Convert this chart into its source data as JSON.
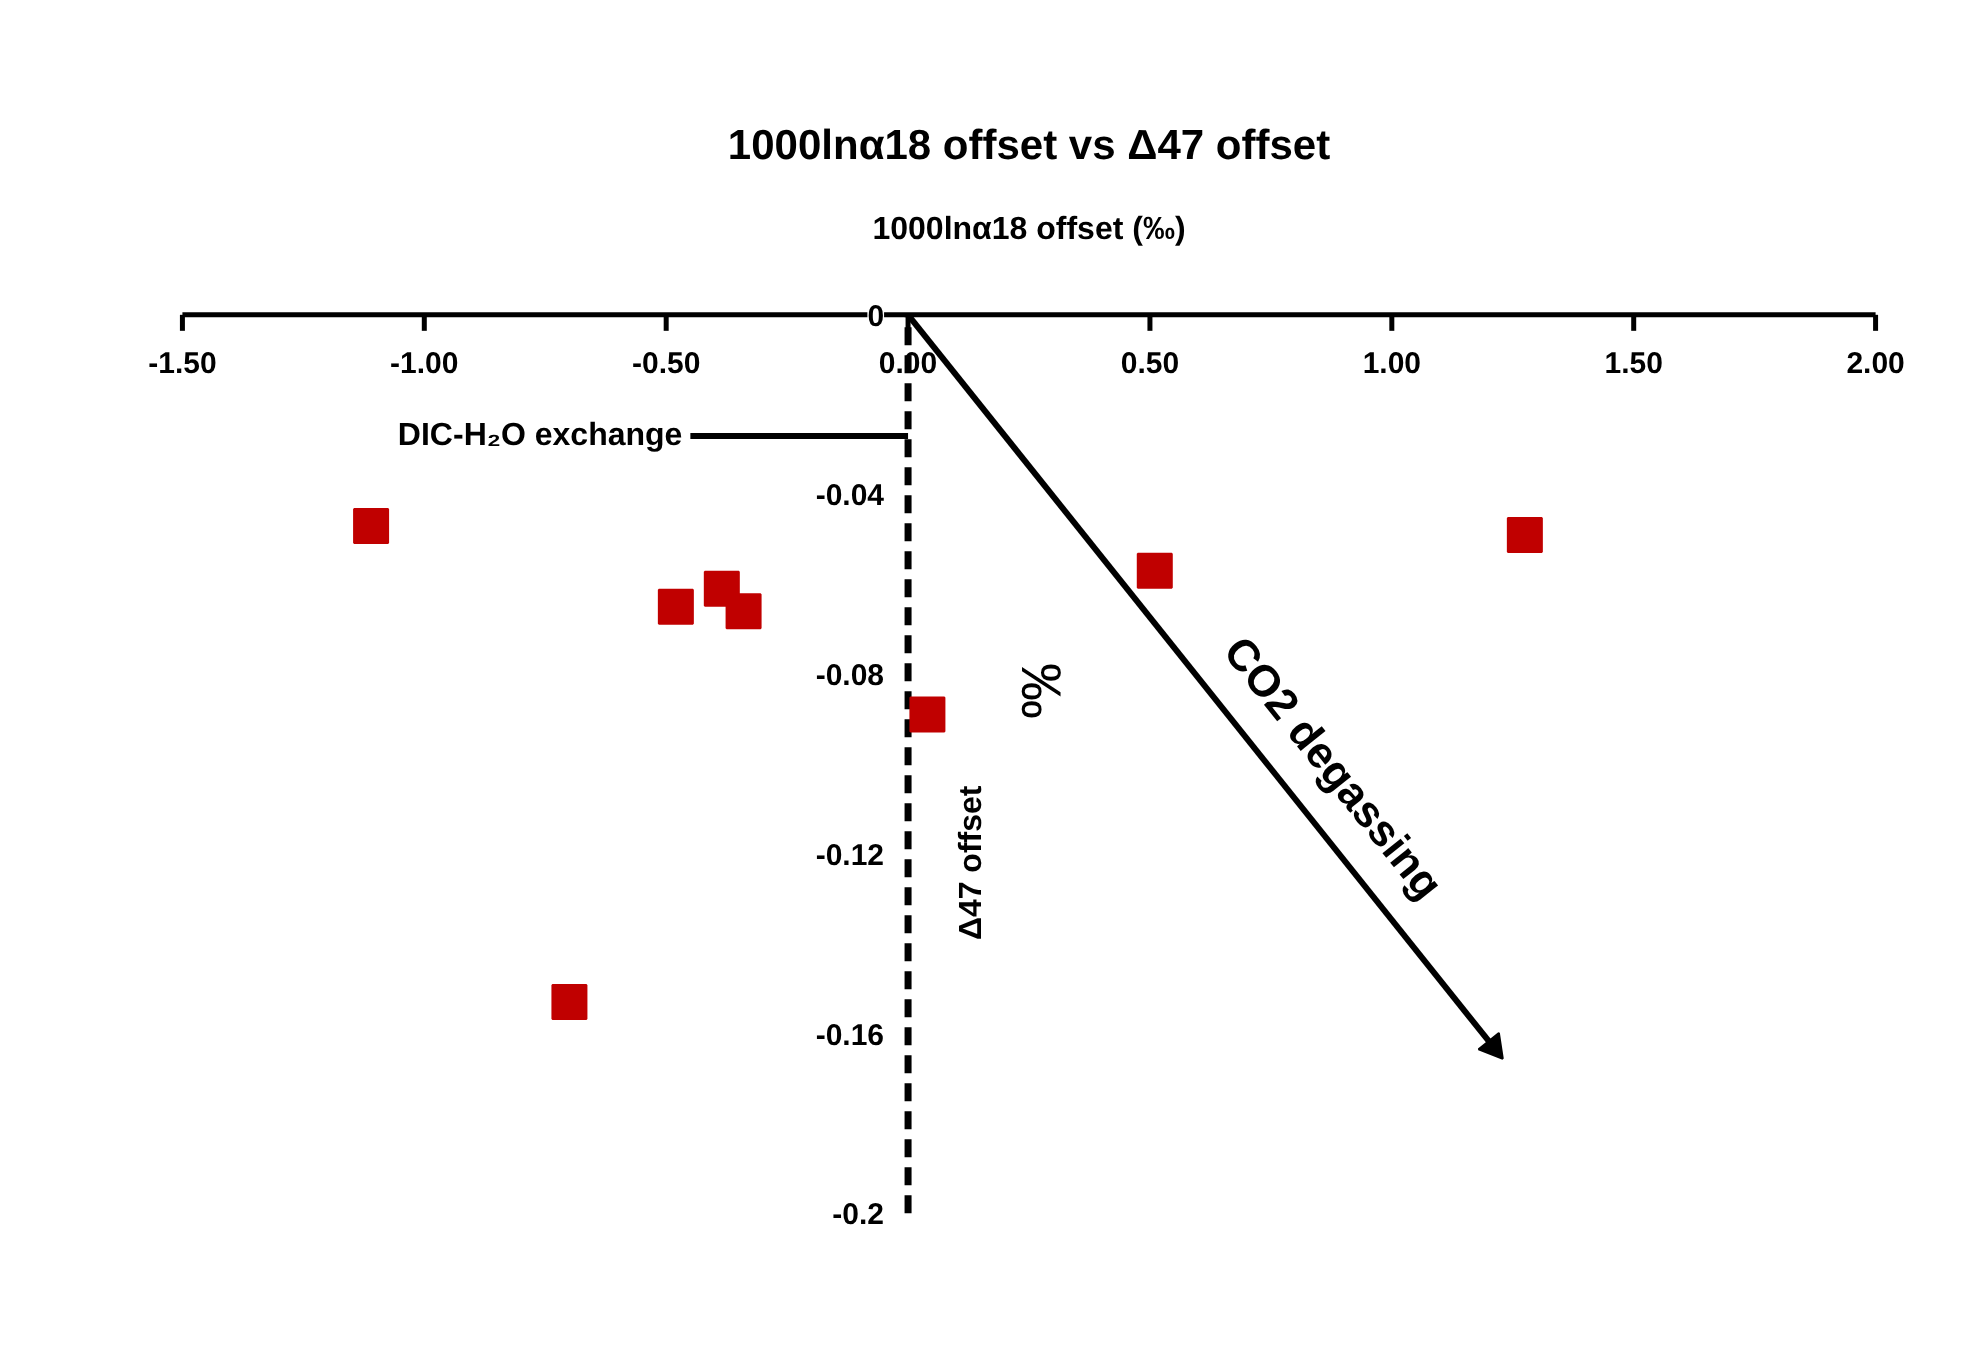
{
  "chart_data": {
    "type": "scatter",
    "title": "1000lnα18 offset vs Δ47 offset",
    "xlabel": "1000lnα18 offset (‰)",
    "ylabel": "Δ47 offset",
    "xlim": [
      -1.5,
      2.0
    ],
    "ylim": [
      -0.2,
      0
    ],
    "xticks": [
      {
        "value": -1.5,
        "label": "-1.50"
      },
      {
        "value": -1.0,
        "label": "-1.00"
      },
      {
        "value": -0.5,
        "label": "-0.50"
      },
      {
        "value": 0,
        "label": "0.00"
      },
      {
        "value": 0.5,
        "label": "0.50"
      },
      {
        "value": 1.0,
        "label": "1.00"
      },
      {
        "value": 1.5,
        "label": "1.50"
      },
      {
        "value": 2.0,
        "label": "2.00"
      }
    ],
    "yticks": [
      0,
      -0.04,
      -0.08,
      -0.12,
      -0.16,
      -0.2
    ],
    "marker": "square",
    "series": [
      {
        "color": "#c00000",
        "x": [
          -1.11,
          -0.48,
          -0.385,
          -0.34,
          0.04,
          -0.7,
          0.51,
          1.275
        ],
        "values": [
          -0.047,
          -0.065,
          -0.061,
          -0.066,
          -0.089,
          -0.153,
          -0.057,
          -0.049
        ]
      },
      {
        "type": "line",
        "color": "#000000",
        "marker": "triangle",
        "x": [
          0,
          1.21
        ],
        "values": [
          0,
          -0.163
        ]
      },
      {
        "type": "line",
        "color": "#000000",
        "marker": "none",
        "x": [
          -0.45,
          0
        ],
        "values": [
          -0.027,
          -0.027
        ]
      }
    ],
    "annotations": [
      {
        "text": "DIC-H₂O exchange",
        "x": -0.45,
        "y": -0.027
      },
      "CO2 degassing",
      "‰"
    ],
    "ref_lines": [
      {
        "axis": "x",
        "value": 0,
        "color": "#000000",
        "line_style": "dashed"
      }
    ]
  }
}
